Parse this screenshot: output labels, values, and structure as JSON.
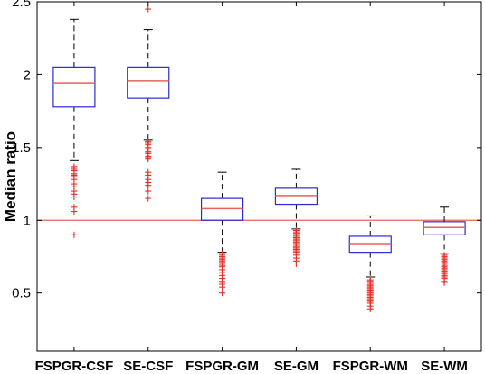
{
  "chart_data": {
    "type": "box",
    "title": "",
    "xlabel": "",
    "ylabel": "Median ratio",
    "ylim": [
      0.1,
      2.5
    ],
    "yticks": [
      0.5,
      1,
      1.5,
      2,
      2.5
    ],
    "ytick_labels": [
      "0.5",
      "1",
      "1.5",
      "2",
      "2.5"
    ],
    "grid": false,
    "categories": [
      "FSPGR-CSF",
      "SE-CSF",
      "FSPGR-GM",
      "SE-GM",
      "FSPGR-WM",
      "SE-WM"
    ],
    "reference_line": {
      "y": 1.0,
      "color": "#e8625c"
    },
    "colors": {
      "box": "#2b2bd6",
      "median": "#e8625c",
      "whisker": "#000000",
      "outlier": "#e8302a"
    },
    "boxes": [
      {
        "category": "FSPGR-CSF",
        "q1": 1.78,
        "median": 1.94,
        "q3": 2.05,
        "whisker_low": 1.41,
        "whisker_high": 2.38,
        "outliers": [
          1.37,
          1.36,
          1.35,
          1.34,
          1.32,
          1.31,
          1.3,
          1.28,
          1.25,
          1.23,
          1.2,
          1.18,
          1.16,
          1.09,
          1.06,
          0.9
        ]
      },
      {
        "category": "SE-CSF",
        "q1": 1.84,
        "median": 1.96,
        "q3": 2.05,
        "whisker_low": 1.55,
        "whisker_high": 2.31,
        "outliers": [
          2.45,
          1.54,
          1.53,
          1.52,
          1.5,
          1.49,
          1.47,
          1.46,
          1.44,
          1.43,
          1.42,
          1.33,
          1.31,
          1.28,
          1.26,
          1.24,
          1.2,
          1.15
        ]
      },
      {
        "category": "FSPGR-GM",
        "q1": 1.0,
        "median": 1.08,
        "q3": 1.15,
        "whisker_low": 0.78,
        "whisker_high": 1.33,
        "outliers": [
          0.77,
          0.76,
          0.75,
          0.74,
          0.73,
          0.72,
          0.71,
          0.7,
          0.69,
          0.68,
          0.66,
          0.64,
          0.62,
          0.6,
          0.58,
          0.56,
          0.54,
          0.5
        ]
      },
      {
        "category": "SE-GM",
        "q1": 1.11,
        "median": 1.17,
        "q3": 1.22,
        "whisker_low": 0.94,
        "whisker_high": 1.35,
        "outliers": [
          0.93,
          0.92,
          0.91,
          0.9,
          0.89,
          0.88,
          0.87,
          0.86,
          0.85,
          0.84,
          0.83,
          0.82,
          0.81,
          0.8,
          0.79,
          0.78,
          0.76,
          0.74,
          0.72,
          0.7
        ]
      },
      {
        "category": "FSPGR-WM",
        "q1": 0.78,
        "median": 0.84,
        "q3": 0.89,
        "whisker_low": 0.61,
        "whisker_high": 1.03,
        "outliers": [
          0.59,
          0.58,
          0.57,
          0.56,
          0.55,
          0.54,
          0.53,
          0.52,
          0.51,
          0.5,
          0.49,
          0.48,
          0.47,
          0.46,
          0.45,
          0.44,
          0.43,
          0.41,
          0.39
        ]
      },
      {
        "category": "SE-WM",
        "q1": 0.9,
        "median": 0.95,
        "q3": 0.99,
        "whisker_low": 0.77,
        "whisker_high": 1.09,
        "outliers": [
          0.76,
          0.75,
          0.74,
          0.73,
          0.72,
          0.71,
          0.7,
          0.69,
          0.68,
          0.67,
          0.66,
          0.65,
          0.64,
          0.63,
          0.62,
          0.61,
          0.6,
          0.58,
          0.57
        ]
      }
    ]
  }
}
